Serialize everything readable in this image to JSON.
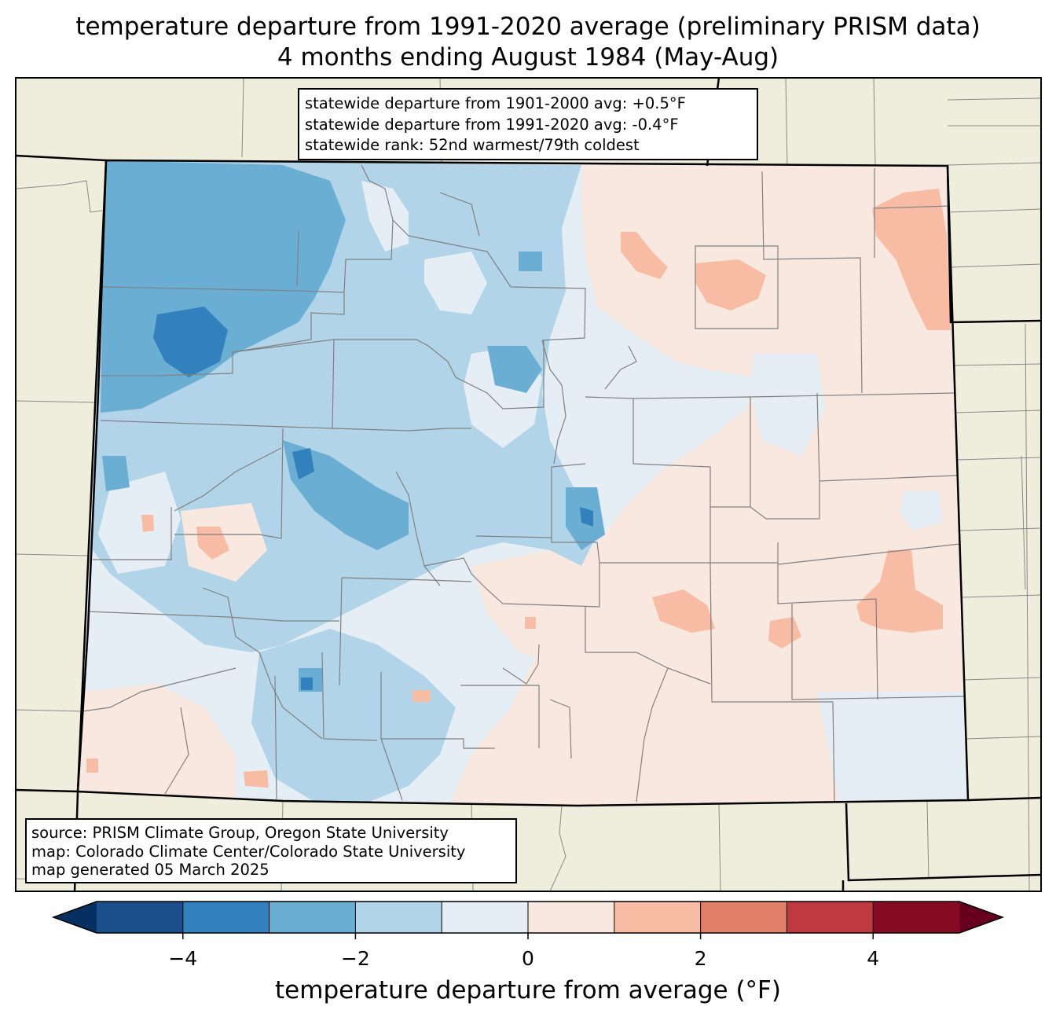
{
  "title": {
    "line1": "temperature departure from 1991-2020 average (preliminary PRISM data)",
    "line2": "4 months ending August 1984 (May-Aug)"
  },
  "stats": {
    "line1": "statewide departure from 1901-2000 avg: +0.5°F",
    "line2": "statewide departure from 1991-2020 avg: -0.4°F",
    "line3": "statewide rank: 52nd warmest/79th coldest"
  },
  "source": {
    "line1": "source: PRISM Climate Group, Oregon State University",
    "line2": "map: Colorado Climate Center/Colorado State University",
    "line3": "map generated 05 March 2025"
  },
  "colorbar": {
    "label": "temperature departure from average (°F)",
    "range": [
      -5,
      5
    ],
    "bin_width": 1,
    "extend": "both",
    "ticks": [
      {
        "value": -4,
        "label": "−4"
      },
      {
        "value": -2,
        "label": "−2"
      },
      {
        "value": 0,
        "label": "0"
      },
      {
        "value": 2,
        "label": "2"
      },
      {
        "value": 4,
        "label": "4"
      }
    ],
    "colors": [
      "#053061",
      "#1a4f8b",
      "#3280bc",
      "#6baed4",
      "#b2d4e8",
      "#e5eef5",
      "#f9e8e0",
      "#f7bca3",
      "#e17f69",
      "#bf3a3e",
      "#870a25",
      "#67001f"
    ]
  },
  "map_colors": {
    "background": "#efeddc",
    "state_border": "#000000",
    "county_border": "#808080"
  }
}
